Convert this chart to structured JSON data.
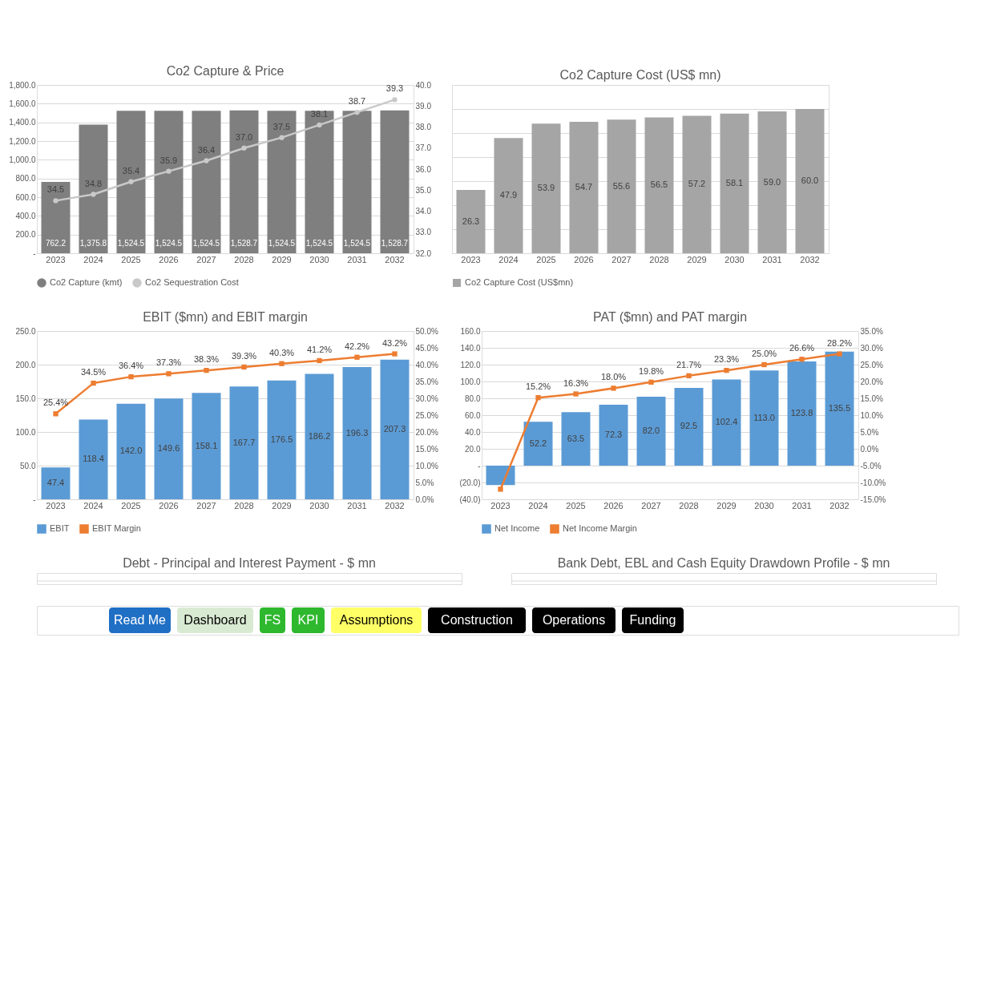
{
  "chart_data": [
    {
      "type": "bar",
      "title": "Co2 Capture & Price",
      "categories": [
        "2023",
        "2024",
        "2025",
        "2026",
        "2027",
        "2028",
        "2029",
        "2030",
        "2031",
        "2032"
      ],
      "series": [
        {
          "name": "Co2 Capture (kmt)",
          "color": "#7f7f7f",
          "values": [
            762.2,
            1375.8,
            1524.5,
            1524.5,
            1524.5,
            1528.7,
            1524.5,
            1524.5,
            1524.5,
            1528.7
          ],
          "value_labels": [
            "762.2",
            "1,375.8",
            "1,524.5",
            "1,524.5",
            "1,524.5",
            "1,528.7",
            "1,524.5",
            "1,524.5",
            "1,524.5",
            "1,528.7"
          ]
        },
        {
          "name": "Co2 Sequestration Cost",
          "type": "line",
          "axis": "y2",
          "marker": "circle",
          "color": "#c9c9c9",
          "values": [
            34.5,
            34.8,
            35.4,
            35.9,
            36.4,
            37.0,
            37.5,
            38.1,
            38.7,
            39.3
          ],
          "value_labels": [
            "34.5",
            "34.8",
            "35.4",
            "35.9",
            "36.4",
            "37.0",
            "37.5",
            "38.1",
            "38.7",
            "39.3"
          ]
        }
      ],
      "ylim": [
        0,
        1800
      ],
      "yticks": [
        {
          "value": 0,
          "label": "-"
        },
        {
          "value": 200,
          "label": "200.0"
        },
        {
          "value": 400,
          "label": "400.0"
        },
        {
          "value": 600,
          "label": "600.0"
        },
        {
          "value": 800,
          "label": "800.0"
        },
        {
          "value": 1000,
          "label": "1,000.0"
        },
        {
          "value": 1200,
          "label": "1,200.0"
        },
        {
          "value": 1400,
          "label": "1,400.0"
        },
        {
          "value": 1600,
          "label": "1,600.0"
        },
        {
          "value": 1800,
          "label": "1,800.0"
        }
      ],
      "y2lim": [
        32,
        40
      ],
      "y2ticks": [
        {
          "value": 32,
          "label": "32.0"
        },
        {
          "value": 33,
          "label": "33.0"
        },
        {
          "value": 34,
          "label": "34.0"
        },
        {
          "value": 35,
          "label": "35.0"
        },
        {
          "value": 36,
          "label": "36.0"
        },
        {
          "value": 37,
          "label": "37.0"
        },
        {
          "value": 38,
          "label": "38.0"
        },
        {
          "value": 39,
          "label": "39.0"
        },
        {
          "value": 40,
          "label": "40.0"
        }
      ],
      "grid": "y",
      "legend": "bottom"
    },
    {
      "type": "bar",
      "title": "Co2 Capture Cost (US$ mn)",
      "categories": [
        "2023",
        "2024",
        "2025",
        "2026",
        "2027",
        "2028",
        "2029",
        "2030",
        "2031",
        "2032"
      ],
      "series": [
        {
          "name": "Co2 Capture Cost (US$mn)",
          "color": "#a5a5a5",
          "values": [
            26.3,
            47.9,
            53.9,
            54.7,
            55.6,
            56.5,
            57.2,
            58.1,
            59.0,
            60.0
          ],
          "value_labels": [
            "26.3",
            "47.9",
            "53.9",
            "54.7",
            "55.6",
            "56.5",
            "57.2",
            "58.1",
            "59.0",
            "60.0"
          ]
        }
      ],
      "ylim": [
        0,
        70
      ],
      "yticks": [
        {
          "value": 0,
          "label": null
        },
        {
          "value": 10,
          "label": null
        },
        {
          "value": 20,
          "label": null
        },
        {
          "value": 30,
          "label": null
        },
        {
          "value": 40,
          "label": null
        },
        {
          "value": 50,
          "label": null
        },
        {
          "value": 60,
          "label": null
        },
        {
          "value": 70,
          "label": null
        }
      ],
      "tick_labels": "x",
      "grid": "y",
      "legend": "bottom"
    },
    {
      "type": "bar",
      "title": "EBIT ($mn) and EBIT margin",
      "categories": [
        "2023",
        "2024",
        "2025",
        "2026",
        "2027",
        "2028",
        "2029",
        "2030",
        "2031",
        "2032"
      ],
      "series": [
        {
          "name": "EBIT",
          "color": "#5b9bd5",
          "values": [
            47.4,
            118.4,
            142.0,
            149.6,
            158.1,
            167.7,
            176.5,
            186.2,
            196.3,
            207.3
          ],
          "value_labels": [
            "47.4",
            "118.4",
            "142.0",
            "149.6",
            "158.1",
            "167.7",
            "176.5",
            "186.2",
            "196.3",
            "207.3"
          ]
        },
        {
          "name": "EBIT Margin",
          "type": "line",
          "axis": "y2",
          "marker": "square",
          "color": "#ed7d31",
          "values": [
            25.4,
            34.5,
            36.4,
            37.3,
            38.3,
            39.3,
            40.3,
            41.2,
            42.2,
            43.2
          ],
          "value_labels": [
            "25.4%",
            "34.5%",
            "36.4%",
            "37.3%",
            "38.3%",
            "39.3%",
            "40.3%",
            "41.2%",
            "42.2%",
            "43.2%"
          ]
        }
      ],
      "ylim": [
        0,
        250
      ],
      "yticks": [
        {
          "value": 0,
          "label": "-"
        },
        {
          "value": 50,
          "label": "50.0"
        },
        {
          "value": 100,
          "label": "100.0"
        },
        {
          "value": 150,
          "label": "150.0"
        },
        {
          "value": 200,
          "label": "200.0"
        },
        {
          "value": 250,
          "label": "250.0"
        }
      ],
      "y2lim": [
        0,
        50
      ],
      "y2ticks": [
        {
          "value": 0,
          "label": "0.0%"
        },
        {
          "value": 5,
          "label": "5.0%"
        },
        {
          "value": 10,
          "label": "10.0%"
        },
        {
          "value": 15,
          "label": "15.0%"
        },
        {
          "value": 20,
          "label": "20.0%"
        },
        {
          "value": 25,
          "label": "25.0%"
        },
        {
          "value": 30,
          "label": "30.0%"
        },
        {
          "value": 35,
          "label": "35.0%"
        },
        {
          "value": 40,
          "label": "40.0%"
        },
        {
          "value": 45,
          "label": "45.0%"
        },
        {
          "value": 50,
          "label": "50.0%"
        }
      ],
      "grid": "y",
      "legend": "bottom"
    },
    {
      "type": "bar",
      "title": "PAT ($mn) and PAT margin",
      "categories": [
        "2023",
        "2024",
        "2025",
        "2026",
        "2027",
        "2028",
        "2029",
        "2030",
        "2031",
        "2032"
      ],
      "series": [
        {
          "name": "Net Income",
          "color": "#5b9bd5",
          "values": [
            -23,
            52.2,
            63.5,
            72.3,
            82.0,
            92.5,
            102.4,
            113.0,
            123.8,
            135.5
          ],
          "value_labels": [
            null,
            "52.2",
            "63.5",
            "72.3",
            "82.0",
            "92.5",
            "102.4",
            "113.0",
            "123.8",
            "135.5"
          ]
        },
        {
          "name": "Net Income Margin",
          "type": "line",
          "axis": "y2",
          "marker": "square",
          "color": "#ed7d31",
          "values": [
            -12,
            15.2,
            16.3,
            18.0,
            19.8,
            21.7,
            23.3,
            25.0,
            26.6,
            28.2
          ],
          "value_labels": [
            null,
            "15.2%",
            "16.3%",
            "18.0%",
            "19.8%",
            "21.7%",
            "23.3%",
            "25.0%",
            "26.6%",
            "28.2%"
          ]
        }
      ],
      "ylim": [
        -40,
        160
      ],
      "yticks": [
        {
          "value": -40,
          "label": "(40.0)"
        },
        {
          "value": -20,
          "label": "(20.0)"
        },
        {
          "value": 0,
          "label": "-"
        },
        {
          "value": 20,
          "label": "20.0"
        },
        {
          "value": 40,
          "label": "40.0"
        },
        {
          "value": 60,
          "label": "60.0"
        },
        {
          "value": 80,
          "label": "80.0"
        },
        {
          "value": 100,
          "label": "100.0"
        },
        {
          "value": 120,
          "label": "120.0"
        },
        {
          "value": 140,
          "label": "140.0"
        },
        {
          "value": 160,
          "label": "160.0"
        }
      ],
      "y2lim": [
        -15,
        35
      ],
      "y2ticks": [
        {
          "value": -15,
          "label": "-15.0%"
        },
        {
          "value": -10,
          "label": "-10.0%"
        },
        {
          "value": -5,
          "label": "-5.0%"
        },
        {
          "value": 0,
          "label": "0.0%"
        },
        {
          "value": 5,
          "label": "5.0%"
        },
        {
          "value": 10,
          "label": "10.0%"
        },
        {
          "value": 15,
          "label": "15.0%"
        },
        {
          "value": 20,
          "label": "20.0%"
        },
        {
          "value": 25,
          "label": "25.0%"
        },
        {
          "value": 30,
          "label": "30.0%"
        },
        {
          "value": 35,
          "label": "35.0%"
        }
      ],
      "grid": "y",
      "legend": "bottom"
    },
    {
      "type": "other",
      "title": "Debt - Principal and Interest Payment - $ mn"
    },
    {
      "type": "other",
      "title": "Bank Debt, EBL and Cash Equity Drawdown Profile - $ mn"
    },
    {
      "type": "other",
      "annotations": [
        "Read Me",
        "Dashboard",
        "FS",
        "KPI",
        "Assumptions",
        "Construction",
        "Operations",
        "Funding"
      ],
      "colors": [
        "#1f6fc5",
        "#d9ead3",
        "#2eb82e",
        "#2eb82e",
        "#ffff66",
        "#000000",
        "#000000",
        "#000000"
      ]
    }
  ]
}
